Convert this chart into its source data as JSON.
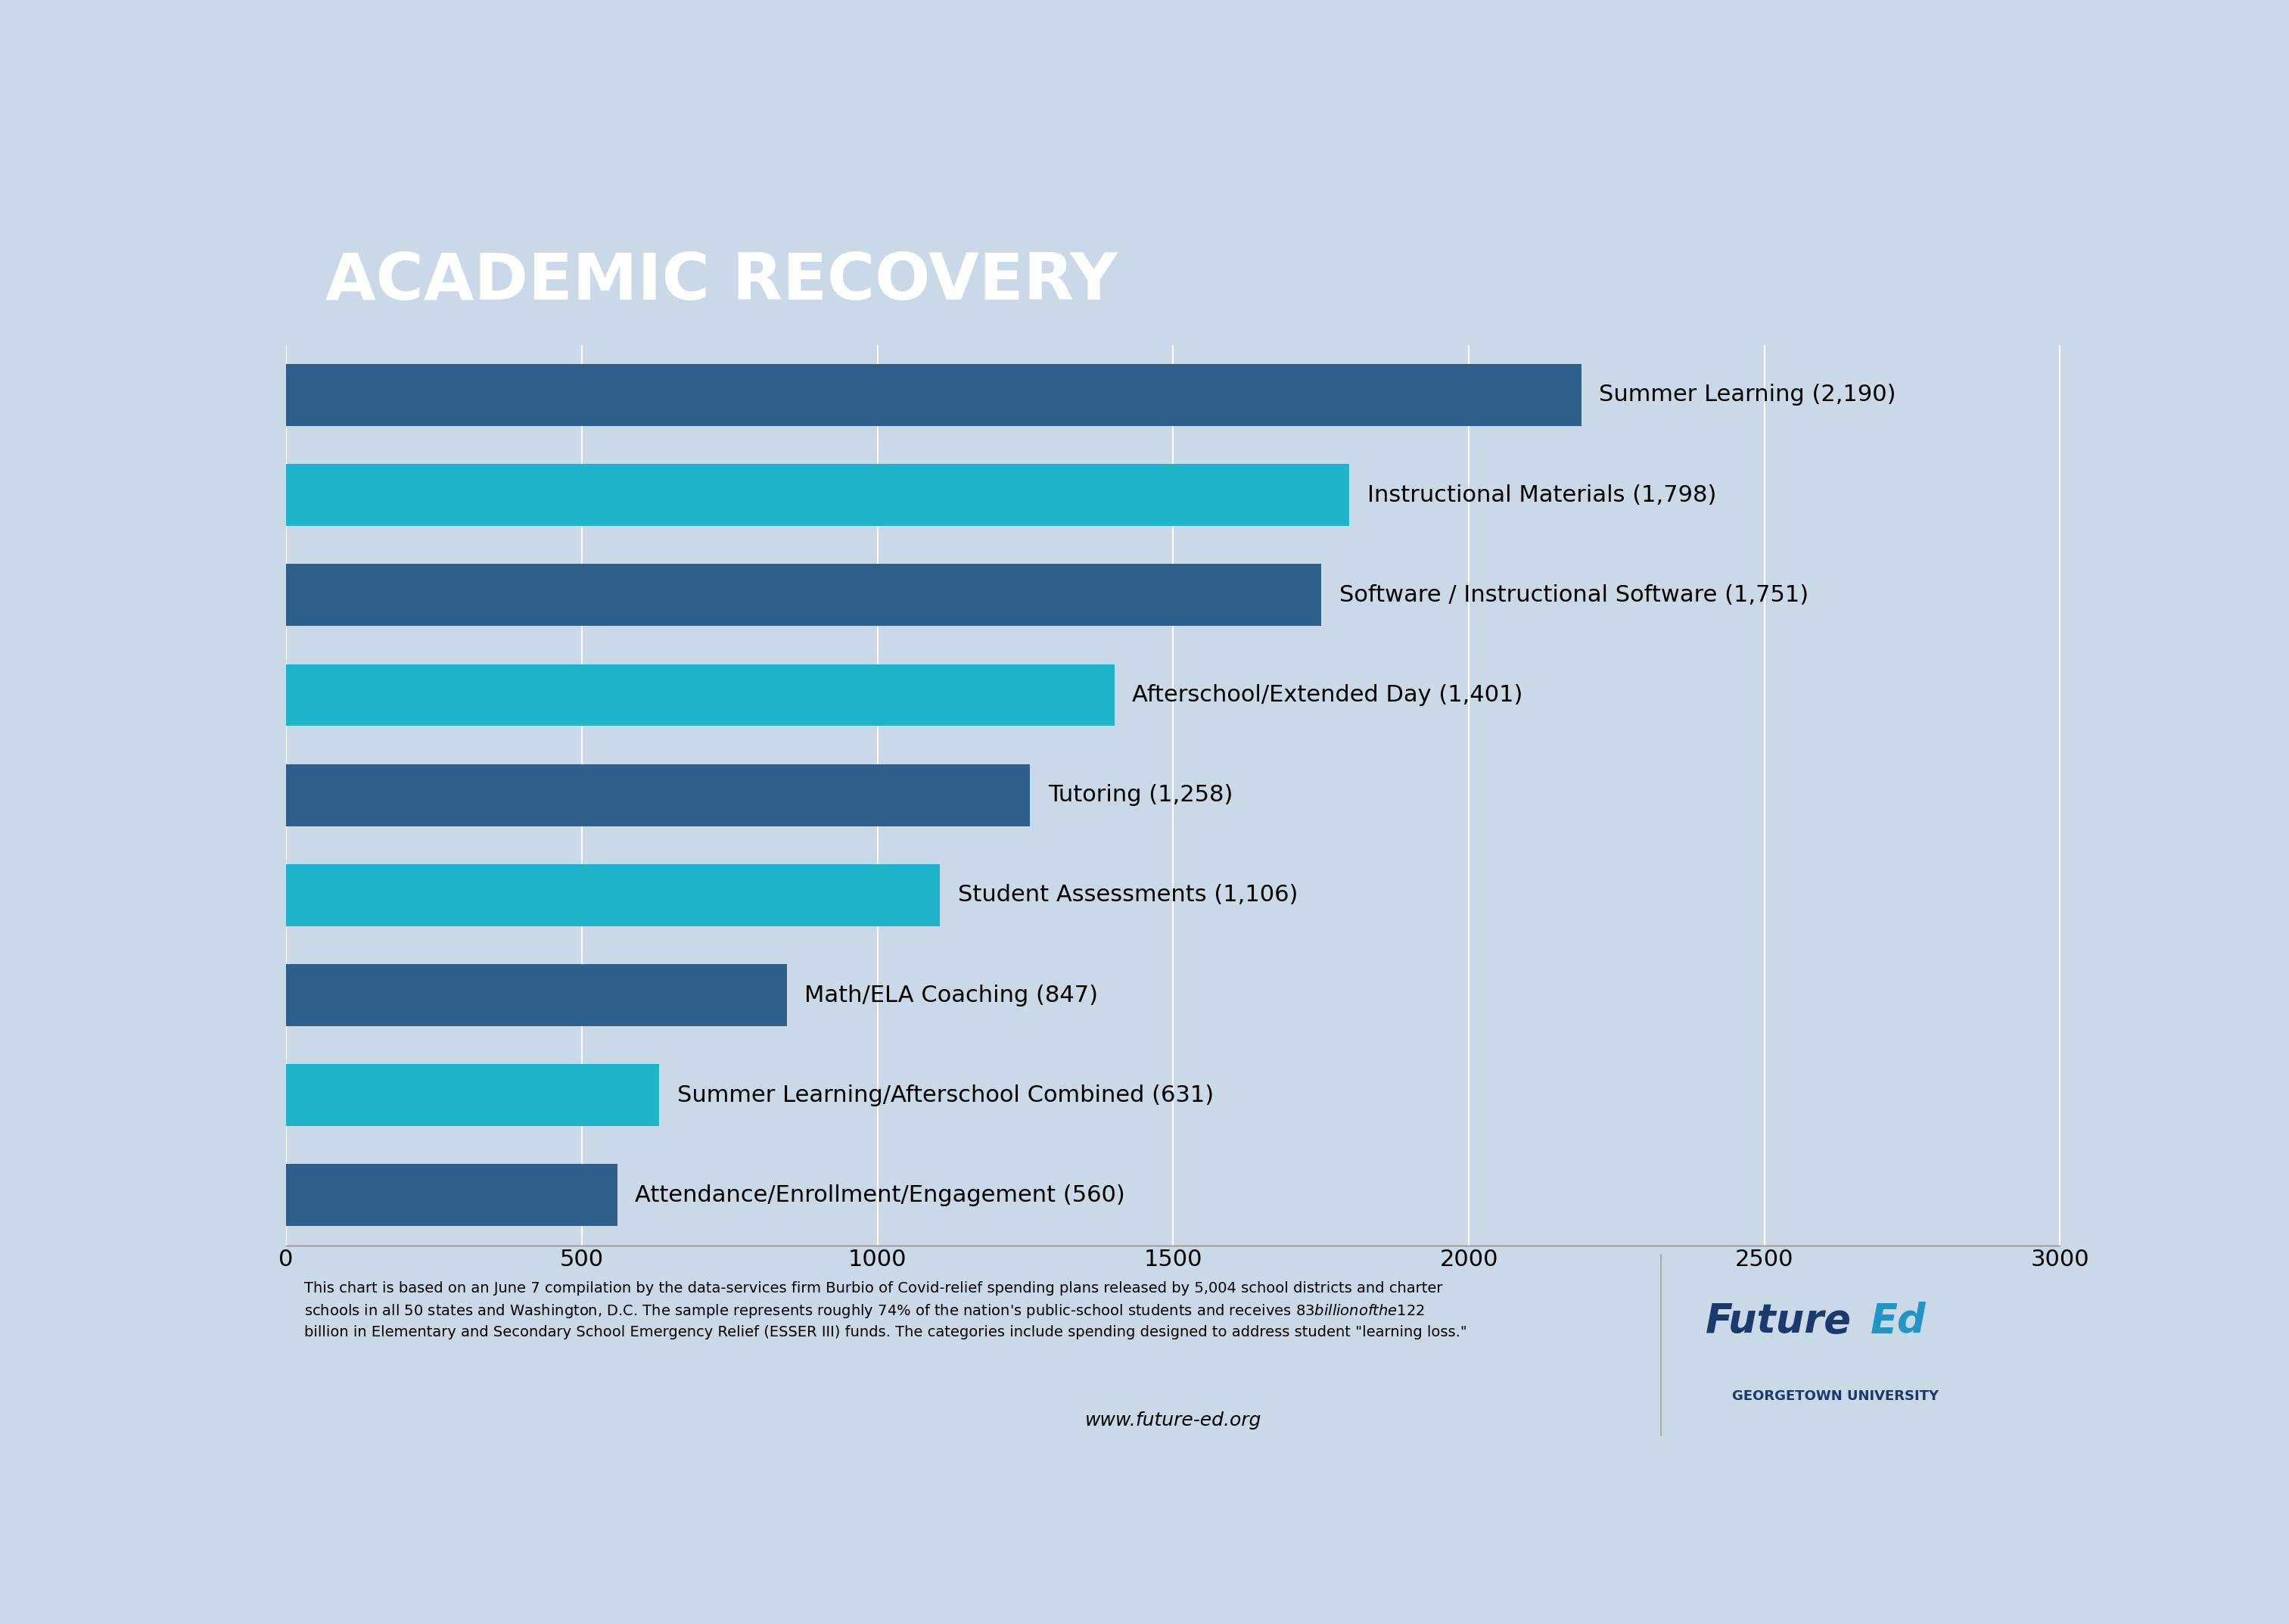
{
  "title": "ACADEMIC RECOVERY",
  "title_bg_color": "#142847",
  "title_text_color": "#ffffff",
  "chart_bg_color": "#c9d9e8",
  "categories": [
    "Attendance/Enrollment/Engagement (560)",
    "Summer Learning/Afterschool Combined (631)",
    "Math/ELA Coaching (847)",
    "Student Assessments (1,106)",
    "Tutoring (1,258)",
    "Afterschool/Extended Day (1,401)",
    "Software / Instructional Software (1,751)",
    "Instructional Materials (1,798)",
    "Summer Learning (2,190)"
  ],
  "values": [
    560,
    631,
    847,
    1106,
    1258,
    1401,
    1751,
    1798,
    2190
  ],
  "bar_colors": [
    "#2e5f8a",
    "#1db3c9",
    "#2e5f8a",
    "#1db3c9",
    "#2e5f8a",
    "#1db3c9",
    "#2e5f8a",
    "#1db3c9",
    "#2e5f8a"
  ],
  "xlim": [
    0,
    3000
  ],
  "xticks": [
    0,
    500,
    1000,
    1500,
    2000,
    2500,
    3000
  ],
  "footnote": "This chart is based on an June 7 compilation by the data-services firm Burbio of Covid-relief spending plans released by 5,004 school districts and charter\nschools in all 50 states and Washington, D.C. The sample represents roughly 74% of the nation's public-school students and receives $83 billion of the $122\nbillion in Elementary and Secondary School Emergency Relief (ESSER III) funds. The categories include spending designed to address student \"learning loss.\"",
  "url": "www.future-ed.org",
  "logo_future": "Future",
  "logo_ed": "Ed",
  "logo_subtext": "GEORGETOWN UNIVERSITY",
  "logo_color_dark": "#1a3a6b",
  "logo_color_accent": "#2196c4"
}
